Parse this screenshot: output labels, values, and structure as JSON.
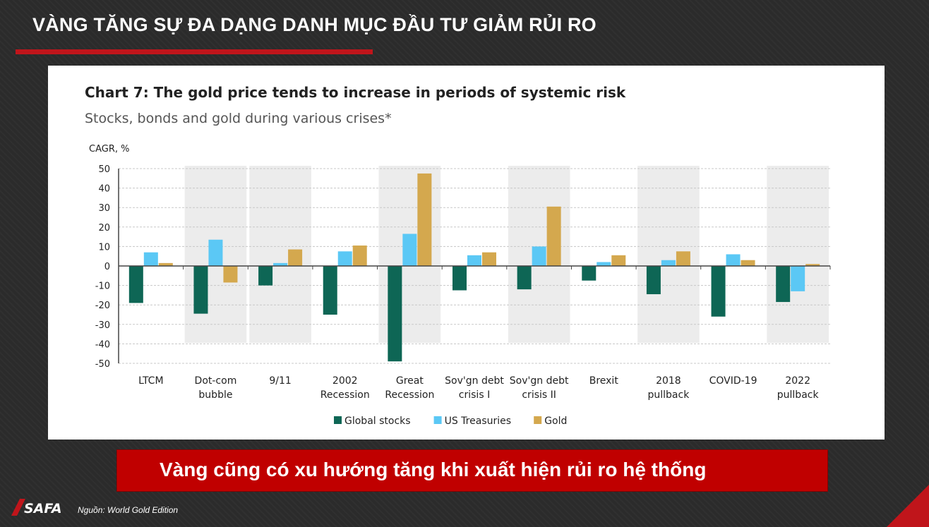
{
  "slide": {
    "title": "VÀNG TĂNG SỰ ĐA DẠNG DANH MỤC ĐẦU TƯ GIẢM RỦI RO",
    "banner": "Vàng cũng có xu hướng tăng khi xuất hiện rủi ro hệ thống",
    "source": "Nguồn: World Gold Edition",
    "logo_text": "SAFA",
    "accent_color": "#c0151b"
  },
  "chart_data": {
    "type": "bar",
    "title": "Chart 7: The gold price tends to increase in periods of systemic risk",
    "subtitle": "Stocks, bonds and gold during various crises*",
    "ylabel": "CAGR, %",
    "ylim": [
      -50,
      50
    ],
    "yticks": [
      50,
      40,
      30,
      20,
      10,
      0,
      -10,
      -20,
      -30,
      -40,
      -50
    ],
    "categories": [
      [
        "LTCM"
      ],
      [
        "Dot-com",
        "bubble"
      ],
      [
        "9/11"
      ],
      [
        "2002",
        "Recession"
      ],
      [
        "Great",
        "Recession"
      ],
      [
        "Sov'gn debt",
        "crisis I"
      ],
      [
        "Sov'gn debt",
        "crisis II"
      ],
      [
        "Brexit"
      ],
      [
        "2018",
        "pullback"
      ],
      [
        "COVID-19"
      ],
      [
        "2022",
        "pullback"
      ]
    ],
    "series": [
      {
        "name": "Global stocks",
        "color": "#0e6655",
        "values": [
          -19,
          -24.5,
          -10,
          -25,
          -49,
          -12.5,
          -12,
          -7.5,
          -14.5,
          -26,
          -18.5
        ]
      },
      {
        "name": "US Treasuries",
        "color": "#5bc8f5",
        "values": [
          7,
          13.5,
          1.5,
          7.5,
          16.5,
          5.5,
          10,
          2,
          3,
          6,
          -13
        ]
      },
      {
        "name": "Gold",
        "color": "#d4a84e",
        "values": [
          1.5,
          -8.5,
          8.5,
          10.5,
          47.5,
          7,
          30.5,
          5.5,
          7.5,
          3,
          1
        ]
      }
    ],
    "shaded_periods": [
      "Dot-com bubble",
      "9/11",
      "Great Recession",
      "Sov'gn debt crisis II",
      "2018 pullback",
      "2022 pullback"
    ],
    "legend_position": "bottom",
    "grid": true
  }
}
